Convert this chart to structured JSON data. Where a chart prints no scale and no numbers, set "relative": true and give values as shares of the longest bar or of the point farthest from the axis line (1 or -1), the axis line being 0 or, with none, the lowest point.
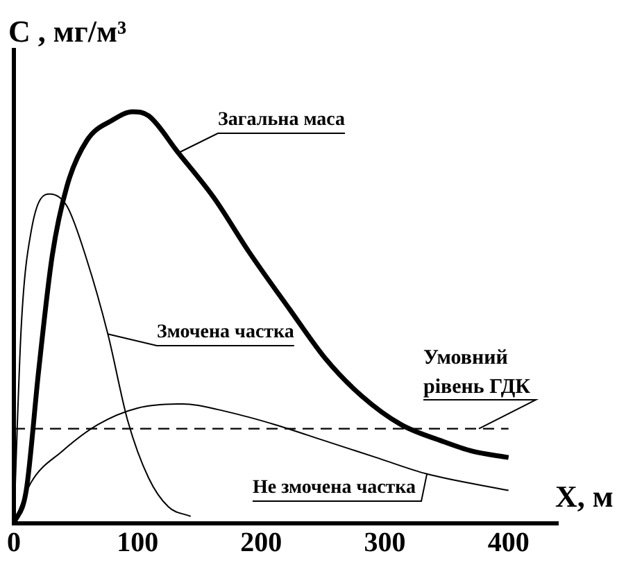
{
  "chart_data": {
    "type": "line",
    "relative": true,
    "xlabel": "X, м",
    "ylabel": "C , мг/м³",
    "xlim": [
      0,
      440
    ],
    "xticks": [
      0,
      100,
      200,
      300,
      400
    ],
    "tick_labels": "x",
    "grid": false,
    "legend": false,
    "marker": "none",
    "line_style": "solid",
    "series": [
      {
        "name": "Загальна маса",
        "color": "#000000",
        "x": [
          0,
          10,
          20,
          31,
          43,
          59,
          80,
          96,
          109,
          133,
          162,
          190,
          223,
          252,
          281,
          313,
          346,
          371,
          400
        ],
        "values": [
          0,
          0.08,
          0.37,
          0.65,
          0.82,
          0.93,
          0.98,
          1,
          0.99,
          0.9,
          0.79,
          0.66,
          0.52,
          0.4,
          0.31,
          0.24,
          0.2,
          0.175,
          0.16
        ]
      },
      {
        "name": "Змочена частка",
        "color": "#000000",
        "x": [
          0,
          6,
          14,
          29,
          43,
          59,
          76,
          92,
          109,
          125,
          143
        ],
        "values": [
          0,
          0.48,
          0.71,
          0.8,
          0.77,
          0.64,
          0.46,
          0.25,
          0.11,
          0.04,
          0.017
        ]
      },
      {
        "name": "Не змочена частка",
        "color": "#000000",
        "x": [
          0,
          14,
          39,
          68,
          100,
          137,
          174,
          211,
          252,
          293,
          334,
          400
        ],
        "values": [
          0,
          0.1,
          0.175,
          0.24,
          0.28,
          0.29,
          0.27,
          0.24,
          0.2,
          0.16,
          0.12,
          0.08
        ]
      }
    ],
    "ref_lines": [
      {
        "axis": "y",
        "value": 0.23,
        "label": "Умовний рівень ГДК",
        "color": "#000000",
        "line_style": "dashed"
      }
    ]
  }
}
